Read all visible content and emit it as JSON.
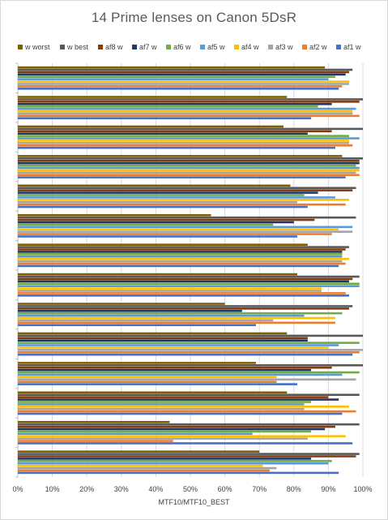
{
  "chart_data": {
    "type": "bar",
    "orientation": "horizontal",
    "title": "14 Prime lenses on Canon 5DsR",
    "xlabel": "MTF10/MTF10_BEST",
    "ylabel": "",
    "xlim": [
      0,
      1
    ],
    "x_tick_labels": [
      "0%",
      "10%",
      "20%",
      "30%",
      "40%",
      "50%",
      "60%",
      "70%",
      "80%",
      "90%",
      "100%"
    ],
    "grid": true,
    "legend_position": "top",
    "series": [
      {
        "name": "w worst",
        "color": "#7f6000",
        "values": [
          0.89,
          0.78,
          0.77,
          0.94,
          0.79,
          0.56,
          0.84,
          0.81,
          0.6,
          0.78,
          0.69,
          0.78,
          0.44,
          0.7
        ]
      },
      {
        "name": "w best",
        "color": "#595959",
        "values": [
          0.97,
          1.0,
          1.0,
          1.0,
          0.98,
          0.98,
          0.96,
          0.99,
          0.97,
          1.0,
          1.0,
          0.99,
          0.99,
          0.99
        ]
      },
      {
        "name": "af8 w",
        "color": "#843c0c",
        "values": [
          0.96,
          0.99,
          0.91,
          0.99,
          0.97,
          0.86,
          0.95,
          0.97,
          0.96,
          0.84,
          0.91,
          0.9,
          0.92,
          0.98
        ]
      },
      {
        "name": "af7 w",
        "color": "#1f3864",
        "values": [
          0.95,
          0.91,
          0.84,
          0.99,
          0.87,
          0.8,
          0.94,
          0.96,
          0.65,
          0.84,
          0.85,
          0.93,
          0.89,
          0.85
        ]
      },
      {
        "name": "af6 w",
        "color": "#70ad47",
        "values": [
          0.92,
          0.87,
          0.96,
          0.98,
          0.83,
          0.74,
          0.94,
          0.99,
          0.94,
          0.99,
          0.99,
          0.85,
          0.85,
          0.91
        ]
      },
      {
        "name": "af5 w",
        "color": "#5b9bd5",
        "values": [
          0.9,
          0.98,
          0.99,
          0.99,
          0.92,
          0.97,
          0.94,
          0.99,
          0.83,
          0.93,
          0.94,
          0.83,
          0.68,
          0.9
        ]
      },
      {
        "name": "af4 w",
        "color": "#ffc000",
        "values": [
          0.96,
          0.97,
          0.96,
          0.99,
          0.96,
          0.93,
          0.96,
          0.88,
          0.92,
          0.9,
          0.75,
          0.96,
          0.95,
          0.71
        ]
      },
      {
        "name": "af3 w",
        "color": "#a5a5a5",
        "values": [
          0.96,
          0.97,
          0.96,
          0.98,
          0.81,
          0.97,
          0.94,
          0.88,
          0.74,
          1.0,
          0.98,
          0.83,
          0.84,
          0.75
        ]
      },
      {
        "name": "af2 w",
        "color": "#ed7d31",
        "values": [
          0.94,
          0.99,
          0.97,
          0.99,
          0.95,
          0.91,
          0.95,
          0.95,
          0.92,
          0.99,
          0.75,
          0.98,
          0.45,
          0.73
        ]
      },
      {
        "name": "af1 w",
        "color": "#4472c4",
        "values": [
          0.93,
          0.85,
          0.92,
          0.95,
          0.84,
          0.81,
          0.93,
          0.96,
          0.69,
          0.97,
          0.81,
          0.94,
          0.97,
          0.93
        ]
      }
    ]
  }
}
